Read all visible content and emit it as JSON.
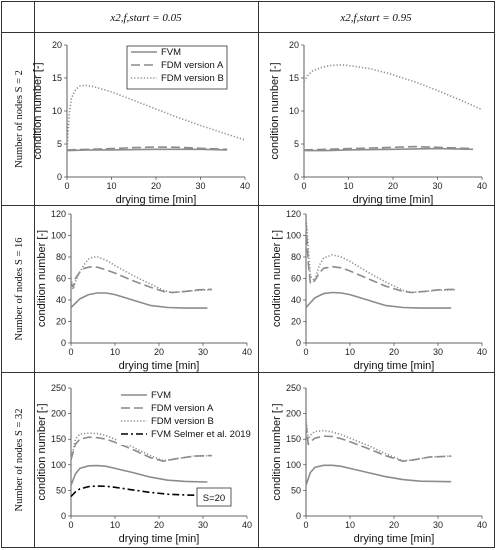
{
  "headers": {
    "col1": "x2,f,start = 0.05",
    "col2": "x2,f,start = 0.95",
    "row1": "Number of nodes S = 2",
    "row2": "Number of nodes S = 16",
    "row3": "Number of nodes S = 32"
  },
  "colors": {
    "fvm": "#8c8c8c",
    "fdm_a": "#8c8c8c",
    "fdm_b": "#8c8c8c",
    "selmer": "#000000"
  },
  "chart_data": [
    {
      "type": "line",
      "id": "r1c1",
      "xlabel": "drying time [min]",
      "ylabel": "condition number [-]",
      "xlim": [
        0,
        40
      ],
      "ylim": [
        0,
        20
      ],
      "xticks": [
        0,
        10,
        20,
        30,
        40
      ],
      "yticks": [
        0,
        5,
        10,
        15,
        20
      ],
      "legend": {
        "placement": "top-right",
        "entries": [
          "FVM",
          "FDM version A",
          "FDM version B"
        ]
      },
      "series": [
        {
          "name": "FVM",
          "style": "solid",
          "x": [
            0,
            5,
            10,
            20,
            30,
            36
          ],
          "y": [
            4.0,
            4.1,
            4.1,
            4.2,
            4.2,
            4.1
          ]
        },
        {
          "name": "FDM version A",
          "style": "dash",
          "x": [
            0,
            5,
            10,
            15,
            20,
            25,
            30,
            36
          ],
          "y": [
            4.1,
            4.2,
            4.3,
            4.45,
            4.55,
            4.5,
            4.35,
            4.2
          ]
        },
        {
          "name": "FDM version B",
          "style": "dot",
          "x": [
            0,
            0.5,
            1,
            2,
            3,
            4,
            6,
            10,
            15,
            20,
            25,
            30,
            35,
            40
          ],
          "y": [
            4.0,
            9.5,
            12.0,
            13.3,
            13.8,
            13.9,
            13.7,
            12.9,
            11.6,
            10.3,
            9.0,
            7.8,
            6.7,
            5.6
          ]
        }
      ]
    },
    {
      "type": "line",
      "id": "r1c2",
      "xlabel": "drying time [min]",
      "ylabel": "condition number [-]",
      "xlim": [
        0,
        40
      ],
      "ylim": [
        0,
        20
      ],
      "xticks": [
        0,
        10,
        20,
        30,
        40
      ],
      "yticks": [
        0,
        5,
        10,
        15,
        20
      ],
      "series": [
        {
          "name": "FVM",
          "style": "solid",
          "x": [
            0,
            5,
            10,
            20,
            30,
            38
          ],
          "y": [
            4.0,
            4.0,
            4.1,
            4.2,
            4.3,
            4.2
          ]
        },
        {
          "name": "FDM version A",
          "style": "dash",
          "x": [
            0,
            5,
            10,
            15,
            20,
            25,
            30,
            38
          ],
          "y": [
            4.1,
            4.2,
            4.3,
            4.4,
            4.5,
            4.6,
            4.5,
            4.3
          ]
        },
        {
          "name": "FDM version B",
          "style": "dot",
          "x": [
            0,
            1,
            2,
            4,
            6,
            8,
            10,
            15,
            20,
            25,
            30,
            35,
            40
          ],
          "y": [
            14.5,
            15.5,
            16.1,
            16.6,
            16.9,
            17.0,
            16.9,
            16.4,
            15.5,
            14.4,
            13.1,
            11.7,
            10.2
          ]
        }
      ]
    },
    {
      "type": "line",
      "id": "r2c1",
      "xlabel": "drying time [min]",
      "ylabel": "condition number [-]",
      "xlim": [
        0,
        40
      ],
      "ylim": [
        0,
        120
      ],
      "xticks": [
        0,
        10,
        20,
        30,
        40
      ],
      "yticks": [
        0,
        20,
        40,
        60,
        80,
        100,
        120
      ],
      "series": [
        {
          "name": "FVM",
          "style": "solid",
          "x": [
            0,
            2,
            4,
            6,
            8,
            10,
            14,
            18,
            22,
            26,
            31
          ],
          "y": [
            33,
            41,
            45,
            46.5,
            46.5,
            45,
            40,
            35,
            33,
            32.5,
            32.5
          ]
        },
        {
          "name": "FDM version A",
          "style": "dash",
          "x": [
            0,
            0.5,
            1,
            2,
            3,
            4,
            5,
            6,
            8,
            10,
            14,
            18,
            21,
            23,
            26,
            29,
            32
          ],
          "y": [
            56,
            52,
            60,
            66,
            69.5,
            70.5,
            71,
            70.5,
            68,
            65,
            58,
            52,
            48,
            47,
            48,
            49.5,
            50
          ]
        },
        {
          "name": "FDM version B",
          "style": "dot",
          "x": [
            0,
            0.5,
            1,
            2,
            3,
            4,
            5,
            6,
            8,
            10,
            14,
            18,
            21,
            23,
            26,
            29,
            32
          ],
          "y": [
            60,
            50,
            57,
            66,
            73,
            78,
            80,
            80,
            77,
            72,
            63,
            55,
            49,
            47,
            48,
            49,
            49.5
          ]
        }
      ]
    },
    {
      "type": "line",
      "id": "r2c2",
      "xlabel": "drying time [min]",
      "ylabel": "condition number [-]",
      "xlim": [
        0,
        40
      ],
      "ylim": [
        0,
        120
      ],
      "xticks": [
        0,
        10,
        20,
        30,
        40
      ],
      "yticks": [
        0,
        20,
        40,
        60,
        80,
        100,
        120
      ],
      "series": [
        {
          "name": "FVM",
          "style": "solid",
          "x": [
            0,
            2,
            4,
            6,
            8,
            10,
            14,
            18,
            22,
            26,
            33
          ],
          "y": [
            33,
            42,
            46,
            47,
            46.5,
            45,
            40,
            35,
            33,
            32.5,
            32.5
          ]
        },
        {
          "name": "FDM version A",
          "style": "dash",
          "x": [
            0,
            0.5,
            1,
            2,
            3,
            4,
            6,
            8,
            10,
            14,
            18,
            22,
            24,
            27,
            30,
            34
          ],
          "y": [
            112,
            75,
            55,
            58,
            65,
            69.5,
            71,
            70,
            67,
            60,
            53,
            48,
            47,
            48,
            49.5,
            50
          ]
        },
        {
          "name": "FDM version B",
          "style": "dot",
          "x": [
            0,
            0.5,
            1,
            2,
            3,
            4,
            6,
            8,
            10,
            14,
            18,
            22,
            24,
            27,
            30,
            34
          ],
          "y": [
            118,
            90,
            62,
            58,
            72,
            79,
            82,
            80,
            76,
            66,
            57,
            49,
            47,
            48,
            49,
            49.5
          ]
        }
      ]
    },
    {
      "type": "line",
      "id": "r3c1",
      "xlabel": "drying time [min]",
      "ylabel": "condition number [-]",
      "xlim": [
        0,
        40
      ],
      "ylim": [
        0,
        250
      ],
      "xticks": [
        0,
        10,
        20,
        30,
        40
      ],
      "yticks": [
        0,
        50,
        100,
        150,
        200,
        250
      ],
      "legend": {
        "placement": "top-right",
        "entries": [
          "FVM",
          "FDM version A",
          "FDM version B",
          "FVM Selmer et al. 2019"
        ]
      },
      "annotation": "S=20",
      "series": [
        {
          "name": "FVM",
          "style": "solid",
          "x": [
            0,
            1,
            2,
            4,
            6,
            8,
            10,
            14,
            18,
            22,
            26,
            31
          ],
          "y": [
            60,
            82,
            93,
            98,
            98.5,
            97,
            93,
            85,
            76,
            70,
            67.5,
            66.5
          ]
        },
        {
          "name": "FDM version A",
          "style": "dash",
          "x": [
            0,
            1,
            2,
            4,
            6,
            8,
            10,
            14,
            18,
            21,
            24,
            28,
            32
          ],
          "y": [
            110,
            140,
            150,
            154,
            153,
            150,
            144,
            130,
            114,
            107,
            112,
            117,
            118
          ]
        },
        {
          "name": "FDM version B",
          "style": "dot",
          "x": [
            0,
            1,
            2,
            4,
            6,
            8,
            10,
            14,
            18,
            21,
            24,
            28,
            32
          ],
          "y": [
            110,
            150,
            160,
            162,
            161,
            157,
            150,
            135,
            118,
            108,
            112,
            117,
            118
          ]
        },
        {
          "name": "FVM Selmer et al. 2019",
          "style": "dashdot",
          "x": [
            0,
            1,
            2,
            4,
            6,
            8,
            10,
            14,
            18,
            22,
            26,
            31
          ],
          "y": [
            38,
            47,
            53,
            57.5,
            58.5,
            58,
            56,
            51,
            46,
            42.5,
            41,
            40
          ]
        }
      ]
    },
    {
      "type": "line",
      "id": "r3c2",
      "xlabel": "drying time [min]",
      "ylabel": "condition number [-]",
      "xlim": [
        0,
        40
      ],
      "ylim": [
        0,
        250
      ],
      "xticks": [
        0,
        10,
        20,
        30,
        40
      ],
      "yticks": [
        0,
        50,
        100,
        150,
        200,
        250
      ],
      "series": [
        {
          "name": "FVM",
          "style": "solid",
          "x": [
            0,
            1,
            2,
            4,
            6,
            8,
            10,
            14,
            18,
            22,
            26,
            33
          ],
          "y": [
            60,
            85,
            95,
            99,
            99,
            97,
            93,
            85,
            77,
            71,
            68,
            67
          ]
        },
        {
          "name": "FDM version A",
          "style": "dash",
          "x": [
            0,
            0.5,
            1,
            2,
            4,
            6,
            8,
            10,
            14,
            18,
            22,
            24,
            28,
            33
          ],
          "y": [
            180,
            140,
            145,
            152,
            156,
            155,
            151,
            145,
            132,
            118,
            107,
            109,
            115,
            117
          ]
        },
        {
          "name": "FDM version B",
          "style": "dot",
          "x": [
            0,
            0.5,
            1,
            2,
            4,
            6,
            8,
            10,
            14,
            18,
            22,
            24,
            28,
            33
          ],
          "y": [
            190,
            150,
            158,
            165,
            167,
            164,
            159,
            152,
            138,
            122,
            108,
            109,
            115,
            117
          ]
        }
      ]
    }
  ]
}
